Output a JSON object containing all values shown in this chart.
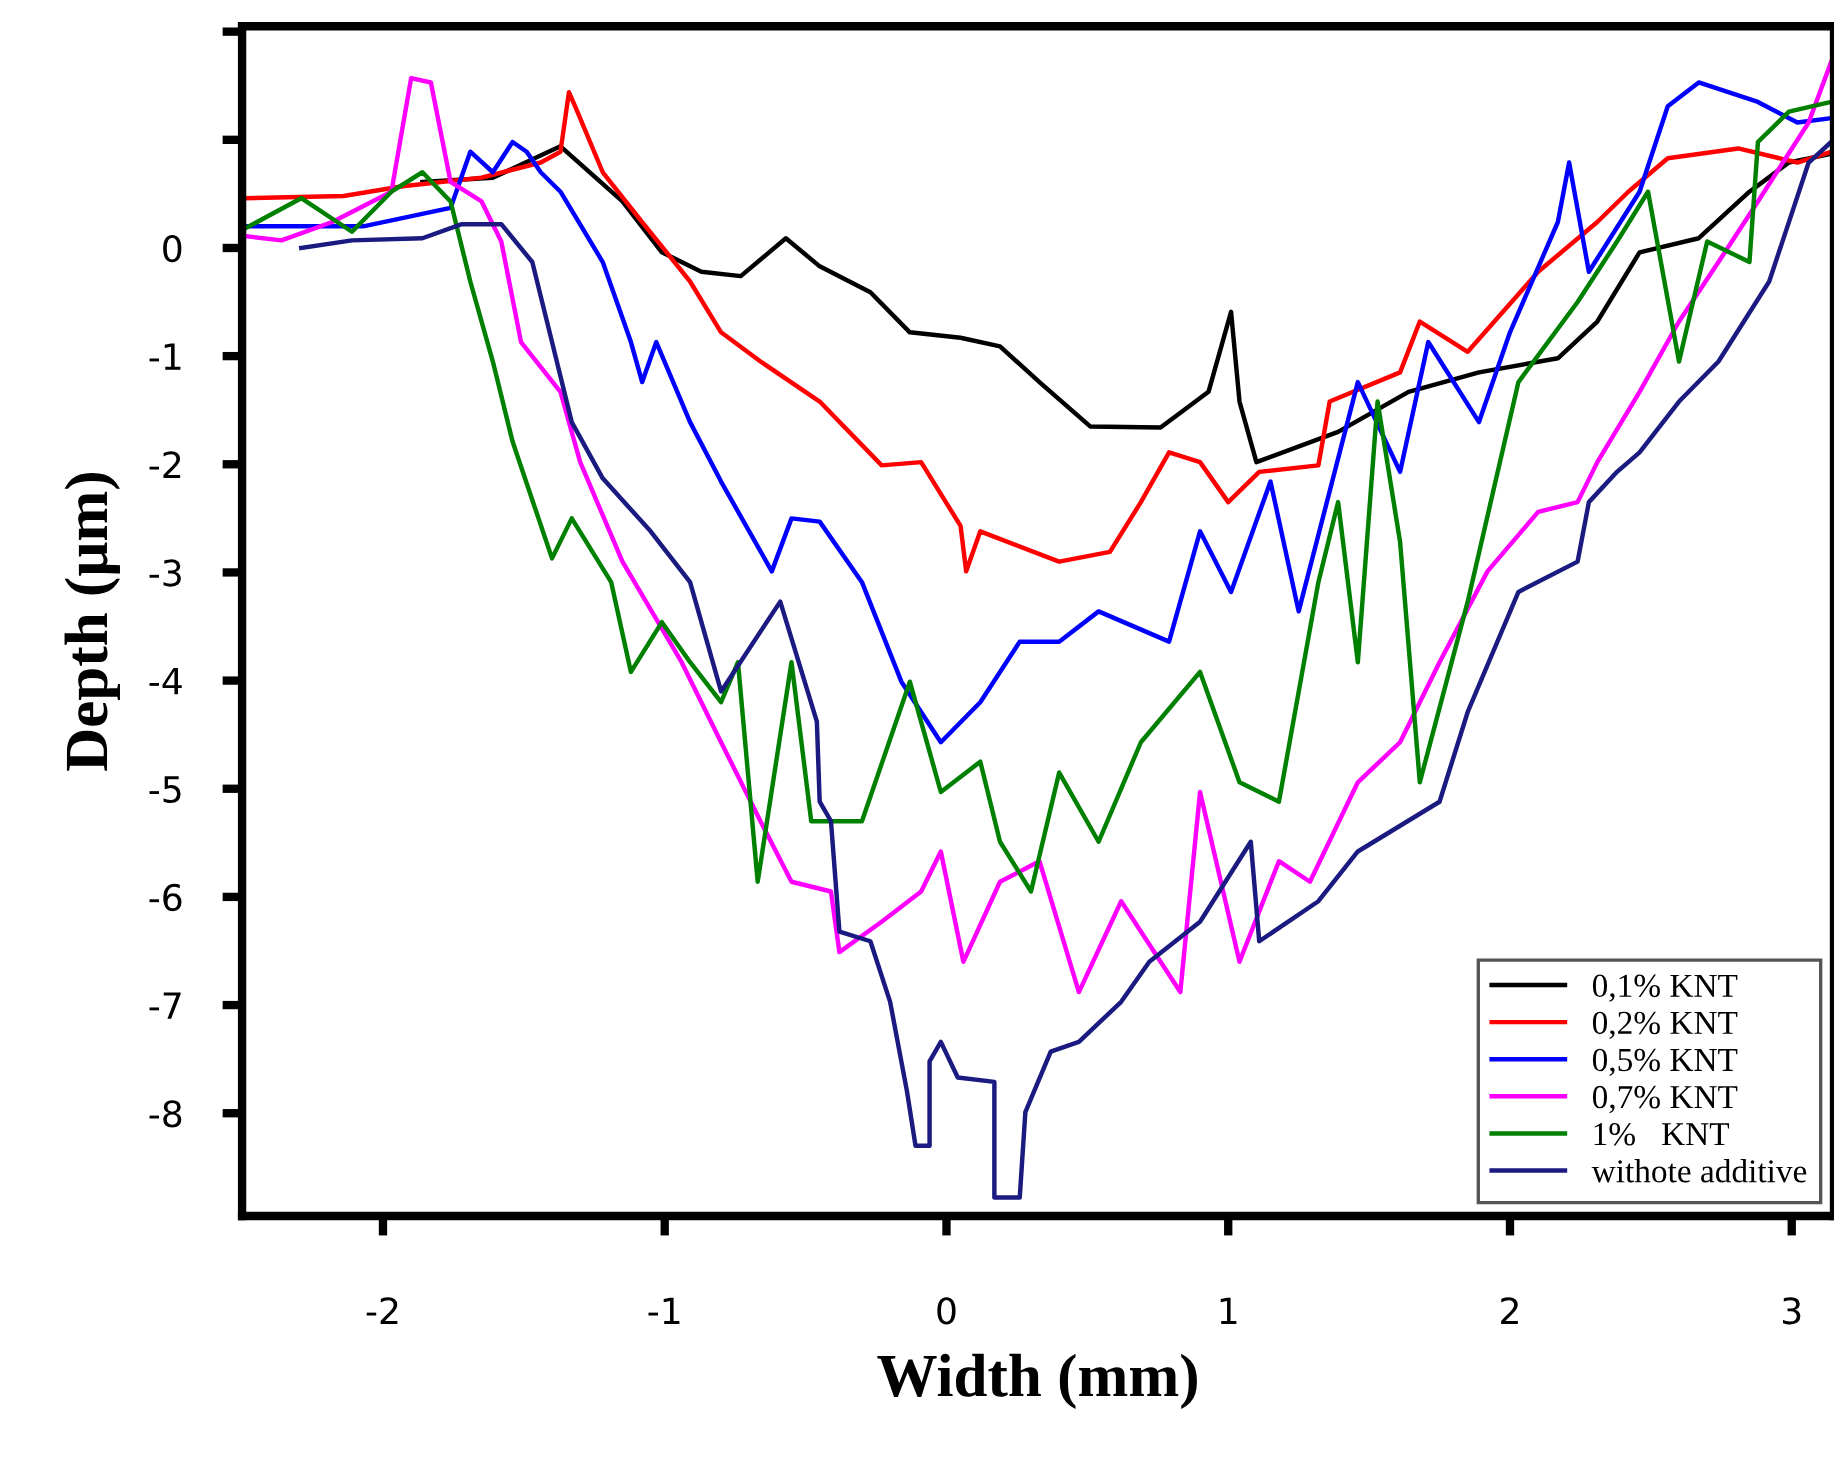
{
  "chart_data": {
    "type": "line",
    "xlabel": "Width (mm)",
    "ylabel": "Depth (µm)",
    "xlim": [
      -2.5,
      3.15
    ],
    "ylim": [
      -8.95,
      2.05
    ],
    "xticks": [
      -2,
      -1,
      0,
      1,
      2,
      3
    ],
    "yticks": [
      {
        "value": 2,
        "label": null
      },
      {
        "value": 1,
        "label": null
      },
      0,
      -1,
      -2,
      -3,
      -4,
      -5,
      -6,
      -7,
      -8
    ],
    "grid": false,
    "legend": "bottom right",
    "marker": "none",
    "line_style": "solid",
    "series": [
      {
        "name": "0,1% KNT",
        "color": "#000000",
        "x": [
          -1.86,
          -1.61,
          -1.37,
          -1.15,
          -1.01,
          -0.87,
          -0.73,
          -0.57,
          -0.45,
          -0.27,
          -0.13,
          0.05,
          0.19,
          0.33,
          0.51,
          0.76,
          0.93,
          1.01,
          1.04,
          1.1,
          1.39,
          1.64,
          1.89,
          2.17,
          2.31,
          2.46,
          2.67,
          2.85,
          2.99,
          3.14
        ],
        "values": [
          0.61,
          0.65,
          0.94,
          0.43,
          -0.04,
          -0.22,
          -0.26,
          0.09,
          -0.17,
          -0.41,
          -0.78,
          -0.83,
          -0.91,
          -1.24,
          -1.65,
          -1.66,
          -1.33,
          -0.59,
          -1.42,
          -1.98,
          -1.7,
          -1.33,
          -1.15,
          -1.02,
          -0.68,
          -0.04,
          0.09,
          0.52,
          0.79,
          0.87
        ]
      },
      {
        "name": "0,2% KNT",
        "color": "#ff0000",
        "x": [
          -2.49,
          -2.14,
          -1.93,
          -1.65,
          -1.44,
          -1.37,
          -1.34,
          -1.31,
          -1.22,
          -1.08,
          -0.91,
          -0.8,
          -0.66,
          -0.45,
          -0.23,
          -0.09,
          0.05,
          0.07,
          0.12,
          0.4,
          0.58,
          0.69,
          0.79,
          0.9,
          1.0,
          1.11,
          1.32,
          1.36,
          1.61,
          1.68,
          1.85,
          2.1,
          2.31,
          2.42,
          2.56,
          2.81,
          3.02,
          3.14
        ],
        "values": [
          0.46,
          0.48,
          0.57,
          0.65,
          0.79,
          0.89,
          1.44,
          1.26,
          0.7,
          0.24,
          -0.31,
          -0.78,
          -1.05,
          -1.42,
          -2.01,
          -1.98,
          -2.57,
          -2.99,
          -2.62,
          -2.9,
          -2.81,
          -2.35,
          -1.89,
          -1.98,
          -2.35,
          -2.07,
          -2.01,
          -1.42,
          -1.15,
          -0.68,
          -0.96,
          -0.22,
          0.24,
          0.52,
          0.83,
          0.92,
          0.79,
          0.89
        ]
      },
      {
        "name": "0,5% KNT",
        "color": "#0000ff",
        "x": [
          -2.49,
          -2.07,
          -1.76,
          -1.69,
          -1.61,
          -1.54,
          -1.49,
          -1.44,
          -1.37,
          -1.22,
          -1.12,
          -1.08,
          -1.03,
          -0.91,
          -0.8,
          -0.62,
          -0.55,
          -0.45,
          -0.3,
          -0.16,
          -0.02,
          0.12,
          0.26,
          0.4,
          0.54,
          0.79,
          0.9,
          1.01,
          1.15,
          1.25,
          1.46,
          1.61,
          1.71,
          1.89,
          2.0,
          2.17,
          2.21,
          2.28,
          2.46,
          2.56,
          2.67,
          2.88,
          3.02,
          3.14
        ],
        "values": [
          0.2,
          0.2,
          0.37,
          0.89,
          0.7,
          0.98,
          0.89,
          0.7,
          0.52,
          -0.13,
          -0.87,
          -1.24,
          -0.87,
          -1.61,
          -2.16,
          -2.99,
          -2.5,
          -2.53,
          -3.09,
          -4.01,
          -4.57,
          -4.2,
          -3.64,
          -3.64,
          -3.36,
          -3.64,
          -2.62,
          -3.18,
          -2.16,
          -3.36,
          -1.24,
          -2.07,
          -0.87,
          -1.61,
          -0.78,
          0.24,
          0.79,
          -0.22,
          0.52,
          1.31,
          1.53,
          1.35,
          1.16,
          1.2
        ]
      },
      {
        "name": "0,7% KNT",
        "color": "#ff00ff",
        "x": [
          -2.49,
          -2.36,
          -2.18,
          -1.97,
          -1.9,
          -1.83,
          -1.76,
          -1.65,
          -1.58,
          -1.51,
          -1.37,
          -1.3,
          -1.15,
          -0.94,
          -0.8,
          -0.66,
          -0.55,
          -0.41,
          -0.38,
          -0.23,
          -0.09,
          -0.02,
          0.06,
          0.19,
          0.33,
          0.47,
          0.62,
          0.83,
          0.9,
          1.04,
          1.18,
          1.29,
          1.46,
          1.61,
          1.75,
          1.92,
          2.1,
          2.24,
          2.31,
          2.46,
          2.6,
          2.74,
          2.88,
          3.06,
          3.14
        ],
        "values": [
          0.11,
          0.07,
          0.24,
          0.52,
          1.57,
          1.53,
          0.61,
          0.43,
          0.06,
          -0.87,
          -1.33,
          -1.98,
          -2.9,
          -3.83,
          -4.57,
          -5.3,
          -5.86,
          -5.95,
          -6.51,
          -6.23,
          -5.95,
          -5.58,
          -6.6,
          -5.86,
          -5.67,
          -6.88,
          -6.04,
          -6.88,
          -5.03,
          -6.6,
          -5.67,
          -5.86,
          -4.94,
          -4.57,
          -3.83,
          -2.99,
          -2.44,
          -2.35,
          -1.98,
          -1.33,
          -0.68,
          -0.13,
          0.43,
          1.16,
          1.72
        ]
      },
      {
        "name": "1%   KNT",
        "color": "#008000",
        "x": [
          -2.49,
          -2.29,
          -2.11,
          -1.97,
          -1.86,
          -1.76,
          -1.69,
          -1.61,
          -1.54,
          -1.4,
          -1.33,
          -1.19,
          -1.12,
          -1.01,
          -0.91,
          -0.8,
          -0.74,
          -0.67,
          -0.55,
          -0.48,
          -0.3,
          -0.13,
          -0.02,
          0.12,
          0.19,
          0.3,
          0.4,
          0.54,
          0.69,
          0.9,
          1.04,
          1.18,
          1.32,
          1.39,
          1.46,
          1.53,
          1.61,
          1.68,
          1.85,
          2.03,
          2.24,
          2.38,
          2.49,
          2.6,
          2.7,
          2.85,
          2.88,
          2.99,
          3.14
        ],
        "values": [
          0.18,
          0.46,
          0.15,
          0.52,
          0.7,
          0.43,
          -0.31,
          -1.05,
          -1.79,
          -2.87,
          -2.5,
          -3.09,
          -3.92,
          -3.46,
          -3.83,
          -4.2,
          -3.83,
          -5.86,
          -3.83,
          -5.3,
          -5.3,
          -4.01,
          -5.03,
          -4.75,
          -5.49,
          -5.95,
          -4.85,
          -5.49,
          -4.57,
          -3.92,
          -4.94,
          -5.12,
          -3.09,
          -2.35,
          -3.83,
          -1.42,
          -2.72,
          -4.94,
          -3.27,
          -1.24,
          -0.5,
          0.06,
          0.52,
          -1.05,
          0.06,
          -0.13,
          0.98,
          1.26,
          1.35
        ]
      },
      {
        "name": "withote additive",
        "color": "#1a1a80",
        "x": [
          -2.29,
          -2.11,
          -1.86,
          -1.72,
          -1.58,
          -1.47,
          -1.4,
          -1.33,
          -1.22,
          -1.05,
          -0.91,
          -0.8,
          -0.59,
          -0.46,
          -0.45,
          -0.41,
          -0.38,
          -0.27,
          -0.2,
          -0.14,
          -0.11,
          -0.06,
          -0.06,
          -0.02,
          0.04,
          0.17,
          0.17,
          0.26,
          0.28,
          0.37,
          0.47,
          0.62,
          0.72,
          0.9,
          1.08,
          1.11,
          1.32,
          1.46,
          1.75,
          1.85,
          2.03,
          2.24,
          2.28,
          2.38,
          2.46,
          2.6,
          2.74,
          2.92,
          3.06,
          3.14
        ],
        "values": [
          0.0,
          0.07,
          0.09,
          0.22,
          0.22,
          -0.13,
          -0.87,
          -1.61,
          -2.13,
          -2.62,
          -3.09,
          -4.1,
          -3.27,
          -4.38,
          -5.12,
          -5.3,
          -6.32,
          -6.41,
          -6.97,
          -7.8,
          -8.3,
          -8.3,
          -7.52,
          -7.34,
          -7.67,
          -7.71,
          -8.78,
          -8.78,
          -7.99,
          -7.43,
          -7.34,
          -6.97,
          -6.6,
          -6.23,
          -5.49,
          -6.41,
          -6.04,
          -5.58,
          -5.12,
          -4.29,
          -3.18,
          -2.9,
          -2.35,
          -2.07,
          -1.89,
          -1.42,
          -1.05,
          -0.31,
          0.79,
          0.98
        ]
      }
    ]
  }
}
